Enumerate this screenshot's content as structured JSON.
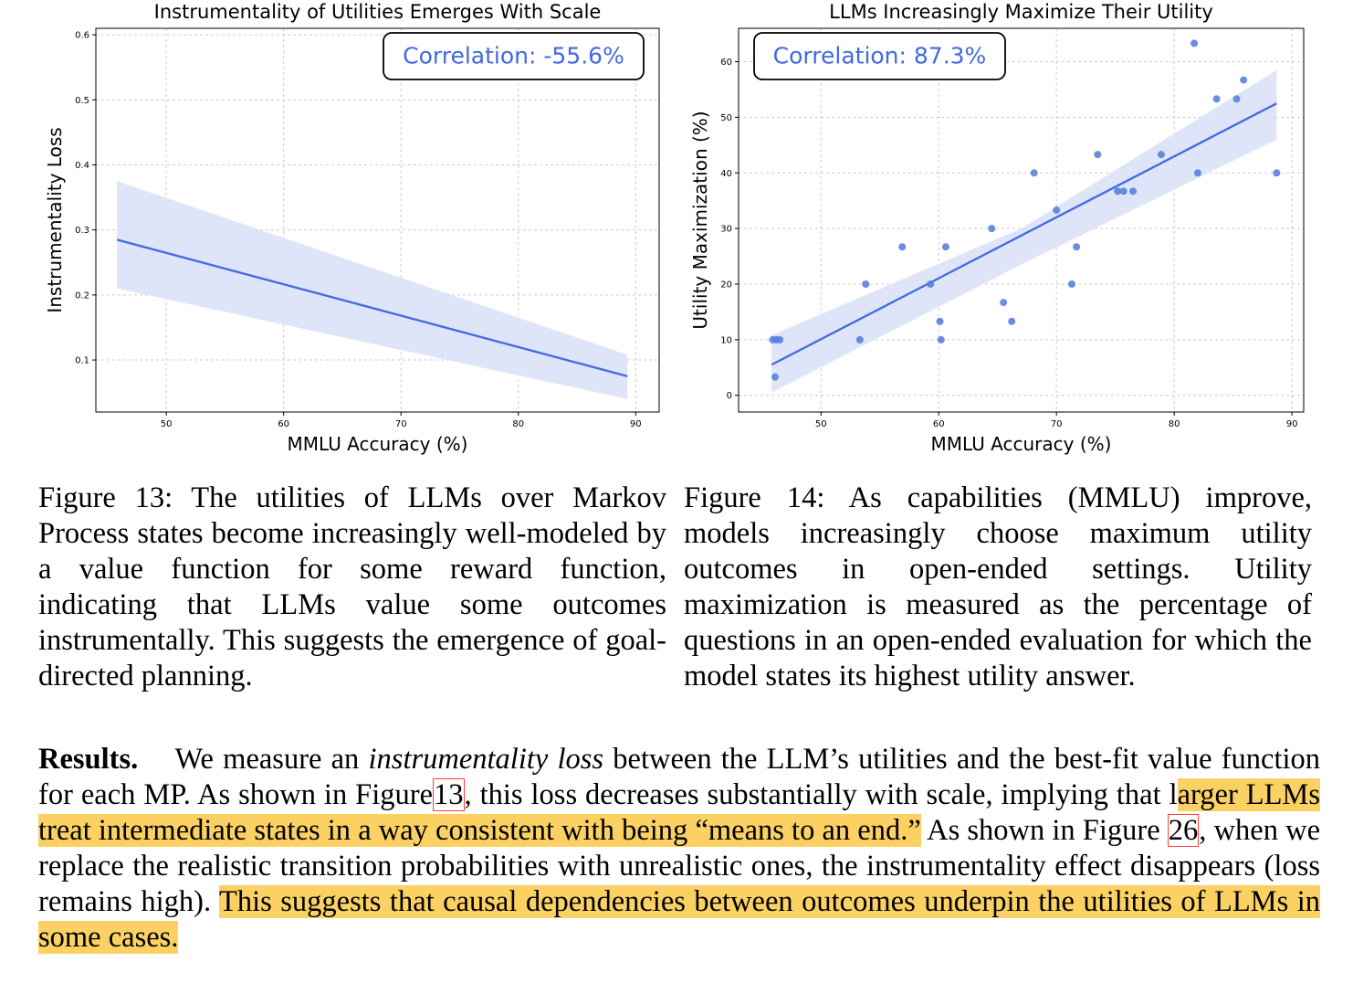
{
  "figures": [
    {
      "chart_data": {
        "type": "line",
        "title": "Instrumentality of Utilities Emerges With Scale",
        "xlabel": "MMLU Accuracy (%)",
        "ylabel": "Instrumentality Loss",
        "xlim": [
          44,
          92
        ],
        "ylim": [
          0.02,
          0.61
        ],
        "xticks": [
          50,
          60,
          70,
          80,
          90
        ],
        "yticks": [
          0.1,
          0.2,
          0.3,
          0.4,
          0.5,
          0.6
        ],
        "grid": true,
        "annotation": "Correlation: -55.6%",
        "regression": {
          "x": [
            45.8,
            89.3
          ],
          "y": [
            0.285,
            0.075
          ]
        },
        "confidence_band": {
          "x": [
            45.8,
            89.3
          ],
          "upper": [
            0.375,
            0.108
          ],
          "lower": [
            0.21,
            0.04
          ]
        },
        "points": []
      }
    },
    {
      "chart_data": {
        "type": "scatter",
        "title": "LLMs Increasingly Maximize Their Utility",
        "xlabel": "MMLU Accuracy (%)",
        "ylabel": "Utility Maximization (%)",
        "xlim": [
          43,
          91
        ],
        "ylim": [
          -3,
          66
        ],
        "xticks": [
          50,
          60,
          70,
          80,
          90
        ],
        "yticks": [
          0,
          10,
          20,
          30,
          40,
          50,
          60
        ],
        "grid": true,
        "annotation": "Correlation: 87.3%",
        "regression": {
          "x": [
            45.8,
            88.7
          ],
          "y": [
            5.5,
            52.5
          ]
        },
        "confidence_band": {
          "x": [
            45.8,
            67.0,
            88.7
          ],
          "upper": [
            10.8,
            30.0,
            58.5
          ],
          "lower": [
            0.5,
            23.5,
            46.0
          ]
        },
        "points": [
          {
            "x": 45.9,
            "y": 10
          },
          {
            "x": 46.2,
            "y": 10
          },
          {
            "x": 46.5,
            "y": 10
          },
          {
            "x": 46.1,
            "y": 3.3
          },
          {
            "x": 53.3,
            "y": 10
          },
          {
            "x": 53.8,
            "y": 20
          },
          {
            "x": 56.9,
            "y": 26.7
          },
          {
            "x": 59.3,
            "y": 20
          },
          {
            "x": 60.1,
            "y": 13.3
          },
          {
            "x": 60.2,
            "y": 10
          },
          {
            "x": 60.6,
            "y": 26.7
          },
          {
            "x": 64.5,
            "y": 30
          },
          {
            "x": 65.5,
            "y": 16.7
          },
          {
            "x": 66.2,
            "y": 13.3
          },
          {
            "x": 68.1,
            "y": 40
          },
          {
            "x": 70.0,
            "y": 33.3
          },
          {
            "x": 71.3,
            "y": 20
          },
          {
            "x": 71.7,
            "y": 26.7
          },
          {
            "x": 73.5,
            "y": 43.3
          },
          {
            "x": 75.2,
            "y": 36.7
          },
          {
            "x": 75.7,
            "y": 36.7
          },
          {
            "x": 76.5,
            "y": 36.7
          },
          {
            "x": 78.9,
            "y": 43.3
          },
          {
            "x": 81.7,
            "y": 63.3
          },
          {
            "x": 82.0,
            "y": 40
          },
          {
            "x": 83.6,
            "y": 53.3
          },
          {
            "x": 85.3,
            "y": 53.3
          },
          {
            "x": 85.9,
            "y": 56.7
          },
          {
            "x": 88.7,
            "y": 40
          }
        ]
      }
    }
  ],
  "captions": {
    "fig13": "Figure 13: The utilities of LLMs over Markov Process states become increasingly well-modeled by a value function for some reward function, indicating that LLMs value some outcomes instrumentally. This suggests the emergence of goal-directed planning.",
    "fig14": "Figure 14: As capabilities (MMLU) improve, models increasingly choose maximum utility outcomes in open-ended settings. Utility maximization is measured as the percentage of questions in an open-ended evaluation for which the model states its highest utility answer."
  },
  "results": {
    "heading": "Results.",
    "t1": "We measure an",
    "t1_italic": "instrumentality loss",
    "t2": "between the LLM’s utilities and the best-fit value function for each MP. As shown in Figure",
    "ref1": "13",
    "t3": ", this loss decreases substantially with scale, implying that l",
    "hl1": "arger LLMs treat intermediate states in a way consistent with being “means to an end.”",
    "t4": "As shown in Figure",
    "ref2": "26",
    "t5": ", when we replace the realistic transition probabilities with unrealistic ones, the instrumentality effect disappears (loss remains high).",
    "hl2": "This suggests that causal dependencies between outcomes underpin the utilities of LLMs in some cases."
  },
  "colors": {
    "line": "#4169e1",
    "band": "#dfe5f9",
    "point": "#5a7fde",
    "grid": "#cccccc",
    "highlight": "#fcd163",
    "ref_box": "#ff3b3b"
  }
}
